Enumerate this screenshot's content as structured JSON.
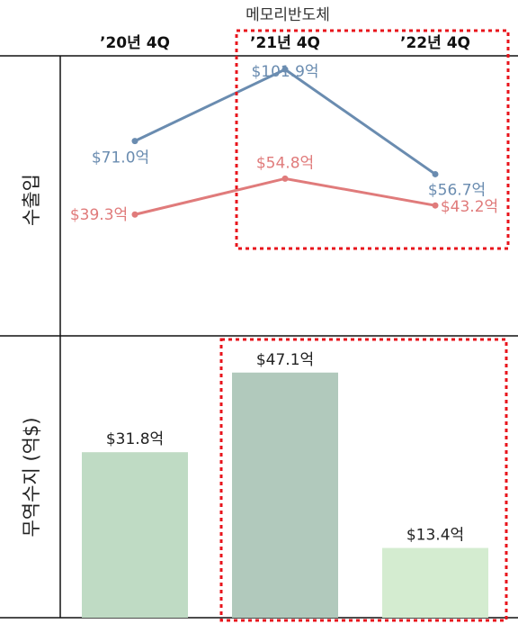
{
  "chart_data": {
    "title": "메모리반도체",
    "categories": [
      "’20년 4Q",
      "’21년 4Q",
      "’22년 4Q"
    ],
    "top_panel": {
      "type": "line",
      "ylabel": "수출입",
      "ylim": [
        0,
        120
      ],
      "series": [
        {
          "values": [
            71.0,
            101.9,
            56.7
          ],
          "labels": [
            "$71.0억",
            "$101.9억",
            "$56.7억"
          ],
          "color": "#6a8cb0"
        },
        {
          "values": [
            39.3,
            54.8,
            43.2
          ],
          "labels": [
            "$39.3억",
            "$54.8억",
            "$43.2억"
          ],
          "color": "#e07b7b"
        }
      ]
    },
    "bottom_panel": {
      "type": "bar",
      "ylabel": "무역수지 (억$)",
      "ylim": [
        0,
        50
      ],
      "values": [
        31.8,
        47.1,
        13.4
      ],
      "labels": [
        "$31.8억",
        "$47.1억",
        "$13.4억"
      ],
      "colors": [
        "#bfdbc4",
        "#b1c9bc",
        "#d4ecd0"
      ]
    },
    "highlight_color": "#e8141c"
  }
}
